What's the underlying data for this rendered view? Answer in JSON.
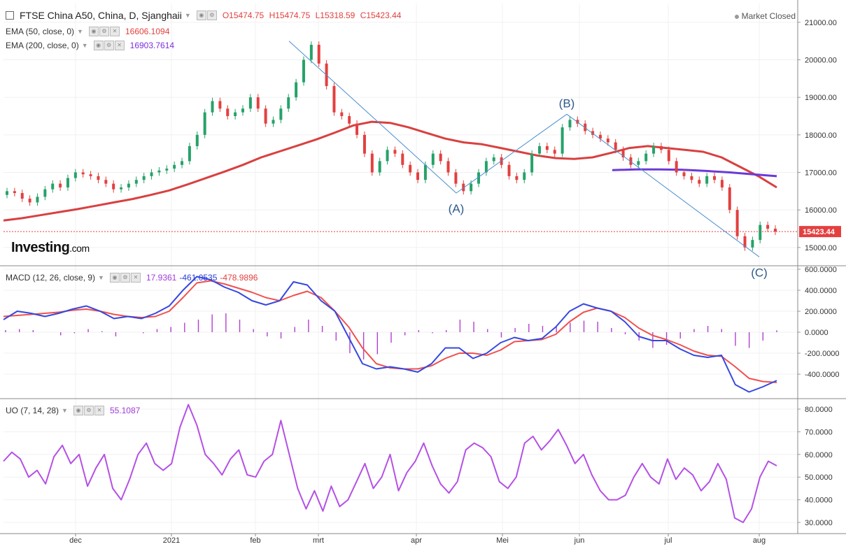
{
  "header": {
    "symbol": "FTSE China A50, China, D, Sjanghaii",
    "open": "O15474.75",
    "high": "H15474.75",
    "low": "L15318.59",
    "close": "C15423.44",
    "market_status": "Market Closed"
  },
  "indicators": {
    "ema50": {
      "label": "EMA (50, close, 0)",
      "value": "16606.1094"
    },
    "ema200": {
      "label": "EMA (200, close, 0)",
      "value": "16903.7614"
    },
    "macd": {
      "label": "MACD (12, 26, close, 9)",
      "hist": "17.9361",
      "macd": "-461.0535",
      "signal": "-478.9896"
    },
    "uo": {
      "label": "UO (7, 14, 28)",
      "value": "55.1087"
    }
  },
  "logo": {
    "main": "Investing",
    "suffix": ".com"
  },
  "colors": {
    "ema50": "#d94040",
    "ema200": "#6a3ad8",
    "macd_line": "#3547e0",
    "signal_line": "#f0504e",
    "histogram": "#b23fd1",
    "uo_line": "#b550e6",
    "wave": "#4b8fd1",
    "up": "#26a269",
    "down": "#e3403f",
    "price_tag": "#e3403f"
  },
  "chart_data": [
    {
      "type": "candlestick",
      "title": "FTSE China A50, China, D, Sjanghaii",
      "x_ticks": [
        "dec",
        "2021",
        "feb",
        "mrt",
        "apr",
        "Mei",
        "jun",
        "jul",
        "aug"
      ],
      "y_ticks": [
        "15000.00",
        "16000.00",
        "17000.00",
        "18000.00",
        "19000.00",
        "20000.00",
        "21000.00"
      ],
      "ylim": [
        14550,
        21500
      ],
      "current_price": "15423.44",
      "close_series": [
        16500,
        16450,
        16300,
        16200,
        16350,
        16550,
        16700,
        16600,
        16850,
        17000,
        16950,
        16900,
        16800,
        16700,
        16550,
        16600,
        16700,
        16800,
        16900,
        17000,
        17050,
        17100,
        17200,
        17300,
        17700,
        18000,
        18600,
        18900,
        18700,
        18500,
        18600,
        18700,
        19000,
        18700,
        18300,
        18400,
        18700,
        19000,
        19400,
        20000,
        20400,
        19900,
        19300,
        18600,
        18500,
        18300,
        18000,
        17500,
        17000,
        17300,
        17600,
        17500,
        17200,
        17000,
        16800,
        17200,
        17500,
        17300,
        17000,
        16700,
        16500,
        16700,
        17000,
        17300,
        17400,
        17200,
        16900,
        16800,
        17000,
        17500,
        17700,
        17600,
        17500,
        18200,
        18400,
        18300,
        18100,
        18000,
        17900,
        17800,
        17600,
        17400,
        17200,
        17300,
        17500,
        17700,
        17600,
        17300,
        17000,
        16900,
        16800,
        16700,
        16900,
        16800,
        16600,
        16000,
        15300,
        15000,
        15200,
        15600,
        15500,
        15423
      ],
      "ema50": [
        15720,
        15780,
        15860,
        15940,
        16020,
        16110,
        16200,
        16290,
        16400,
        16520,
        16680,
        16850,
        17020,
        17200,
        17400,
        17560,
        17720,
        17880,
        18060,
        18250,
        18350,
        18320,
        18200,
        18050,
        17900,
        17800,
        17750,
        17650,
        17550,
        17450,
        17380,
        17360,
        17400,
        17520,
        17650,
        17700,
        17650,
        17600,
        17550,
        17400,
        17150,
        16900,
        16600
      ],
      "ema200": [
        17060,
        17080,
        17080,
        17070,
        17040,
        17000,
        16950,
        16900
      ],
      "waves": [
        {
          "label": "",
          "date": "feb",
          "value": 20500
        },
        {
          "label": "(A)",
          "date": "apr",
          "value": 16450
        },
        {
          "label": "(B)",
          "date": "jun",
          "value": 18550
        },
        {
          "label": "(C)",
          "date": "aug",
          "value": 14750
        }
      ]
    },
    {
      "type": "line",
      "title": "MACD (12, 26, close, 9)",
      "y_ticks": [
        "-400.0000",
        "-200.0000",
        "0.0000",
        "200.0000",
        "400.0000",
        "600.0000"
      ],
      "ylim": [
        -620,
        620
      ],
      "series": [
        {
          "name": "MACD",
          "values": [
            120,
            200,
            180,
            150,
            180,
            220,
            250,
            200,
            130,
            150,
            130,
            180,
            250,
            400,
            530,
            500,
            430,
            380,
            300,
            260,
            300,
            480,
            450,
            300,
            200,
            -50,
            -300,
            -350,
            -330,
            -350,
            -380,
            -300,
            -150,
            -150,
            -250,
            -200,
            -100,
            -50,
            -80,
            -60,
            50,
            200,
            270,
            230,
            200,
            100,
            -40,
            -80,
            -80,
            -160,
            -220,
            -240,
            -220,
            -500,
            -570,
            -520,
            -461
          ]
        },
        {
          "name": "Signal",
          "values": [
            150,
            160,
            170,
            180,
            190,
            210,
            220,
            200,
            170,
            150,
            140,
            150,
            200,
            330,
            470,
            490,
            460,
            420,
            380,
            330,
            300,
            350,
            390,
            330,
            200,
            50,
            -150,
            -300,
            -340,
            -350,
            -350,
            -320,
            -250,
            -200,
            -200,
            -220,
            -170,
            -90,
            -80,
            -70,
            -20,
            100,
            190,
            230,
            200,
            140,
            40,
            -30,
            -70,
            -120,
            -180,
            -220,
            -230,
            -330,
            -440,
            -470,
            -479
          ]
        }
      ],
      "histogram": [
        20,
        30,
        20,
        0,
        -30,
        -10,
        30,
        10,
        -40,
        0,
        -10,
        30,
        50,
        90,
        120,
        170,
        180,
        120,
        30,
        -40,
        -60,
        50,
        120,
        60,
        -80,
        -200,
        -260,
        -210,
        -100,
        -30,
        20,
        -10,
        20,
        120,
        100,
        30,
        -50,
        40,
        80,
        60,
        50,
        90,
        110,
        100,
        40,
        -20,
        -80,
        -150,
        -120,
        -60,
        30,
        60,
        30,
        -130,
        -150,
        -80,
        18
      ]
    },
    {
      "type": "line",
      "title": "UO (7, 14, 28)",
      "y_ticks": [
        "30.0000",
        "40.0000",
        "50.0000",
        "60.0000",
        "70.0000",
        "80.0000"
      ],
      "ylim": [
        26,
        84
      ],
      "series": [
        {
          "name": "UO",
          "values": [
            57,
            61,
            58,
            50,
            53,
            47,
            59,
            64,
            56,
            60,
            46,
            54,
            60,
            45,
            40,
            49,
            60,
            65,
            56,
            53,
            56,
            72,
            82,
            73,
            60,
            56,
            51,
            58,
            62,
            51,
            50,
            57,
            60,
            75,
            60,
            45,
            36,
            44,
            35,
            46,
            37,
            40,
            48,
            56,
            45,
            50,
            60,
            44,
            52,
            57,
            65,
            55,
            47,
            43,
            48,
            62,
            65,
            63,
            59,
            48,
            45,
            50,
            65,
            68,
            62,
            66,
            71,
            64,
            56,
            60,
            51,
            44,
            40,
            40,
            42,
            50,
            56,
            50,
            47,
            58,
            49,
            54,
            51,
            44,
            48,
            56,
            49,
            32,
            30,
            36,
            50,
            57,
            55
          ]
        }
      ]
    }
  ]
}
